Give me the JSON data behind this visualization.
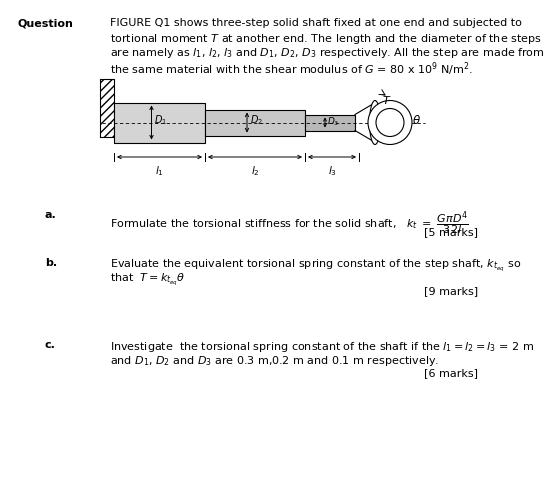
{
  "bg_color": "#ffffff",
  "text_color": "#000000",
  "question_label": "Question",
  "question_lines": [
    "FIGURE Q1 shows three-step solid shaft fixed at one end and subjected to",
    "tortional moment T at another end. The length and the diameter of the steps",
    "are namely as l₁, l₂, l₃ and D₁, D₂, D₃ respectively. All the step are made from",
    "the same material with the shear modulus of G = 80 x 10⁹ N/m²."
  ],
  "part_a_label": "a.",
  "part_a_text": "Formulate the torsional stiffness for the solid shaft,",
  "part_a_marks": "[5 marks]",
  "part_b_label": "b.",
  "part_b_line1": "Evaluate the equivalent torsional spring constant of the step shaft, k",
  "part_b_line2": "that  T = k",
  "part_b_marks": "[9 marks]",
  "part_c_label": "c.",
  "part_c_line1": "Investigate  the torsional spring constant of the shaft if the l₁= l₂ = l₃ = 2 m",
  "part_c_line2": "and D₁, D₂ and D₃ are 0.3 m,0.2 m and 0.1 m respectively.",
  "part_c_marks": "[6 marks]",
  "wall_color": "#e0e0e0",
  "shaft1_color": "#d4d4d4",
  "shaft2_color": "#c8c8c8",
  "shaft3_color": "#b8b8b8"
}
